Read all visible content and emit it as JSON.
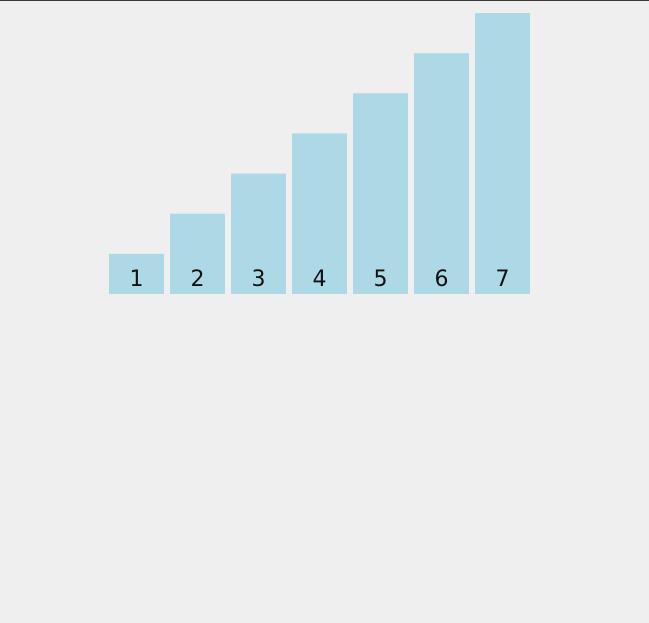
{
  "chart_data": {
    "type": "bar",
    "categories": [
      "1",
      "2",
      "3",
      "4",
      "5",
      "6",
      "7"
    ],
    "values": [
      1,
      2,
      3,
      4,
      5,
      6,
      7
    ],
    "data_labels": [
      "1",
      "2",
      "3",
      "4",
      "5",
      "6",
      "7"
    ],
    "title": "",
    "xlabel": "",
    "ylabel": "",
    "ylim": [
      0,
      7
    ],
    "grid": false,
    "bar_color": "#add8e6"
  }
}
